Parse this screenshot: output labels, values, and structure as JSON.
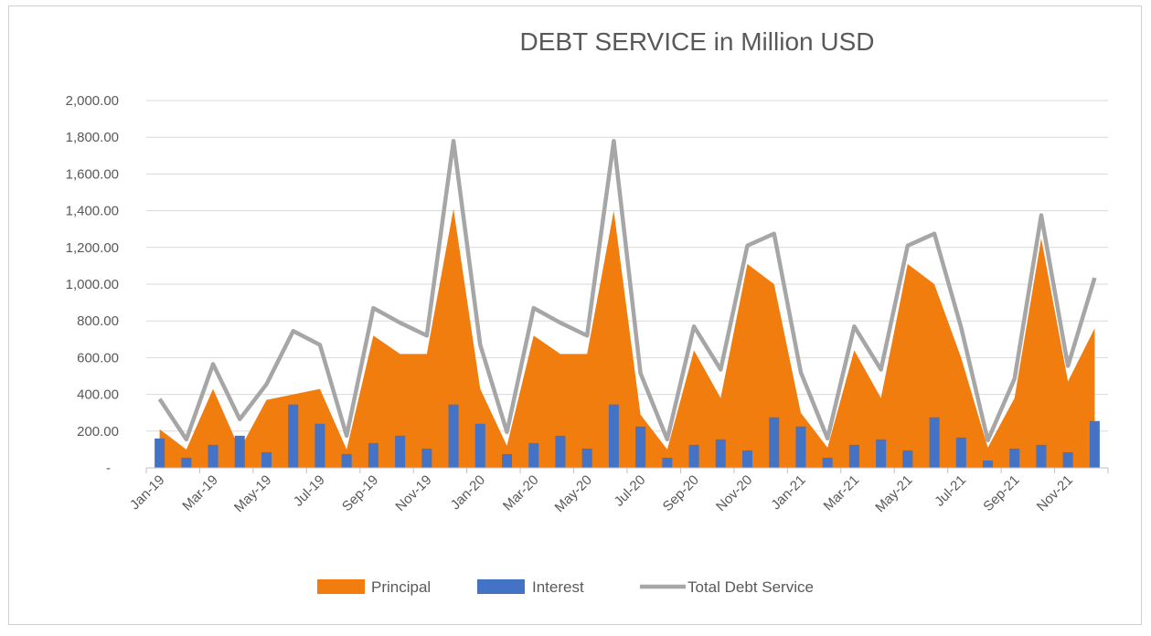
{
  "chart_data": {
    "type": "bar",
    "title": "DEBT SERVICE in Million USD",
    "xlabel": "",
    "ylabel": "",
    "ylim": [
      0,
      2000
    ],
    "yticks": [
      {
        "value": 0,
        "label": "-"
      },
      {
        "value": 200,
        "label": "200.00"
      },
      {
        "value": 400,
        "label": "400.00"
      },
      {
        "value": 600,
        "label": "600.00"
      },
      {
        "value": 800,
        "label": "800.00"
      },
      {
        "value": 1000,
        "label": "1,000.00"
      },
      {
        "value": 1200,
        "label": "1,200.00"
      },
      {
        "value": 1400,
        "label": "1,400.00"
      },
      {
        "value": 1600,
        "label": "1,600.00"
      },
      {
        "value": 1800,
        "label": "1,800.00"
      },
      {
        "value": 2000,
        "label": "2,000.00"
      }
    ],
    "grid": true,
    "legend_position": "bottom",
    "categories": [
      "Jan-19",
      "Feb-19",
      "Mar-19",
      "Apr-19",
      "May-19",
      "Jun-19",
      "Jul-19",
      "Aug-19",
      "Sep-19",
      "Oct-19",
      "Nov-19",
      "Dec-19",
      "Jan-20",
      "Feb-20",
      "Mar-20",
      "Apr-20",
      "May-20",
      "Jun-20",
      "Jul-20",
      "Aug-20",
      "Sep-20",
      "Oct-20",
      "Nov-20",
      "Dec-20",
      "Jan-21",
      "Feb-21",
      "Mar-21",
      "Apr-21",
      "May-21",
      "Jun-21",
      "Jul-21",
      "Aug-21",
      "Sep-21",
      "Oct-21",
      "Nov-21",
      "Dec-21"
    ],
    "xtick_labels": [
      "Jan-19",
      "Mar-19",
      "May-19",
      "Jul-19",
      "Sep-19",
      "Nov-19",
      "Jan-20",
      "Mar-20",
      "May-20",
      "Jul-20",
      "Sep-20",
      "Nov-20",
      "Jan-21",
      "Mar-21",
      "May-21",
      "Jul-21",
      "Sep-21",
      "Nov-21"
    ],
    "series": [
      {
        "name": "Principal",
        "type": "area",
        "color": "#f07d0e",
        "values": [
          210,
          100,
          430,
          100,
          370,
          400,
          430,
          100,
          720,
          620,
          620,
          1410,
          430,
          120,
          720,
          620,
          620,
          1400,
          290,
          100,
          640,
          380,
          1110,
          1000,
          300,
          110,
          640,
          380,
          1110,
          1000,
          600,
          110,
          380,
          1250,
          470,
          760
        ]
      },
      {
        "name": "Interest",
        "type": "bar",
        "color": "#4472c4",
        "values": [
          160,
          55,
          125,
          175,
          85,
          345,
          240,
          75,
          135,
          175,
          105,
          345,
          240,
          75,
          135,
          175,
          105,
          345,
          225,
          55,
          125,
          155,
          95,
          275,
          225,
          55,
          125,
          155,
          95,
          275,
          165,
          40,
          105,
          125,
          85,
          255
        ]
      },
      {
        "name": "Total Debt Service",
        "type": "line",
        "color": "#a6a6a6",
        "values": [
          375,
          155,
          565,
          265,
          455,
          745,
          670,
          175,
          870,
          790,
          720,
          1780,
          670,
          195,
          870,
          790,
          720,
          1780,
          515,
          155,
          770,
          535,
          1210,
          1275,
          520,
          160,
          770,
          535,
          1210,
          1275,
          765,
          150,
          485,
          1375,
          555,
          1035
        ]
      }
    ]
  }
}
